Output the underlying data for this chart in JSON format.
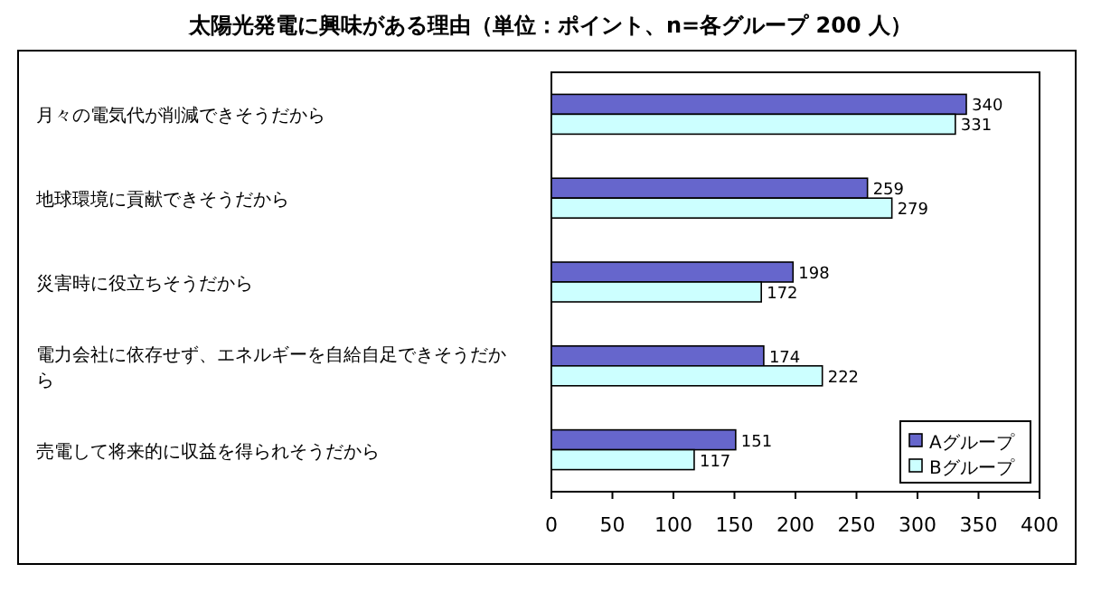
{
  "chart_data": {
    "type": "bar",
    "orientation": "horizontal",
    "title": "太陽光発電に興味がある理由（単位：ポイント、n=各グループ 200 人）",
    "categories": [
      "月々の電気代が削減できそうだから",
      "地球環境に貢献できそうだから",
      "災害時に役立ちそうだから",
      "電力会社に依存せず、エネルギーを自給自足できそうだから",
      "売電して将来的に収益を得られそうだから"
    ],
    "series": [
      {
        "name": "Aグループ",
        "color": "#6666cc",
        "values": [
          340,
          259,
          198,
          174,
          151
        ]
      },
      {
        "name": "Bグループ",
        "color": "#ccffff",
        "values": [
          331,
          279,
          172,
          222,
          117
        ]
      }
    ],
    "xlim": [
      0,
      400
    ],
    "xticks": [
      0,
      50,
      100,
      150,
      200,
      250,
      300,
      350,
      400
    ],
    "data_labels": true,
    "legend": "bottom right",
    "grid": false
  }
}
